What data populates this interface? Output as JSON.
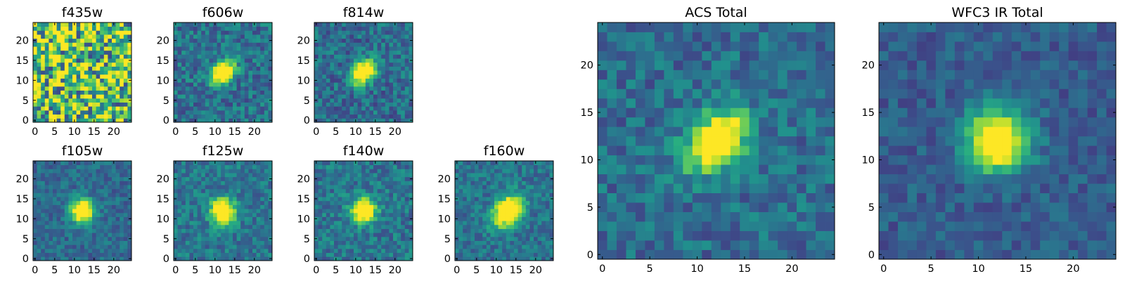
{
  "chart_data": [
    {
      "type": "heatmap",
      "title": "f435w",
      "xticks": [
        "0",
        "5",
        "10",
        "15",
        "20"
      ],
      "yticks": [
        "0",
        "5",
        "10",
        "15",
        "20"
      ],
      "xlim": [
        -0.5,
        24.5
      ],
      "ylim": [
        -0.5,
        24.5
      ],
      "grid": false,
      "colormap": "viridis",
      "source_blob": null,
      "noise": 1.0,
      "base": 0.72,
      "seed": 11
    },
    {
      "type": "heatmap",
      "title": "f606w",
      "xticks": [
        "0",
        "5",
        "10",
        "15",
        "20"
      ],
      "yticks": [
        "0",
        "5",
        "10",
        "15",
        "20"
      ],
      "xlim": [
        -0.5,
        24.5
      ],
      "ylim": [
        -0.5,
        24.5
      ],
      "grid": false,
      "colormap": "viridis",
      "source_blob": {
        "x": 12,
        "y": 12,
        "peak": 1.0,
        "sigma": 1.6,
        "elongation": "diagonal"
      },
      "noise": 0.35,
      "base": 0.38,
      "seed": 22
    },
    {
      "type": "heatmap",
      "title": "f814w",
      "xticks": [
        "0",
        "5",
        "10",
        "15",
        "20"
      ],
      "yticks": [
        "0",
        "5",
        "10",
        "15",
        "20"
      ],
      "xlim": [
        -0.5,
        24.5
      ],
      "ylim": [
        -0.5,
        24.5
      ],
      "grid": false,
      "colormap": "viridis",
      "source_blob": {
        "x": 12,
        "y": 12,
        "peak": 1.0,
        "sigma": 1.7,
        "elongation": "diagonal"
      },
      "noise": 0.35,
      "base": 0.36,
      "seed": 33
    },
    {
      "type": "heatmap",
      "title": "f105w",
      "xticks": [
        "0",
        "5",
        "10",
        "15",
        "20"
      ],
      "yticks": [
        "0",
        "5",
        "10",
        "15",
        "20"
      ],
      "xlim": [
        -0.5,
        24.5
      ],
      "ylim": [
        -0.5,
        24.5
      ],
      "grid": false,
      "colormap": "viridis",
      "source_blob": {
        "x": 12,
        "y": 12,
        "peak": 1.0,
        "sigma": 2.0,
        "elongation": "round"
      },
      "noise": 0.25,
      "base": 0.35,
      "seed": 44
    },
    {
      "type": "heatmap",
      "title": "f125w",
      "xticks": [
        "0",
        "5",
        "10",
        "15",
        "20"
      ],
      "yticks": [
        "0",
        "5",
        "10",
        "15",
        "20"
      ],
      "xlim": [
        -0.5,
        24.5
      ],
      "ylim": [
        -0.5,
        24.5
      ],
      "grid": false,
      "colormap": "viridis",
      "source_blob": {
        "x": 12,
        "y": 12,
        "peak": 1.0,
        "sigma": 2.1,
        "elongation": "round"
      },
      "noise": 0.3,
      "base": 0.4,
      "seed": 55
    },
    {
      "type": "heatmap",
      "title": "f140w",
      "xticks": [
        "0",
        "5",
        "10",
        "15",
        "20"
      ],
      "yticks": [
        "0",
        "5",
        "10",
        "15",
        "20"
      ],
      "xlim": [
        -0.5,
        24.5
      ],
      "ylim": [
        -0.5,
        24.5
      ],
      "grid": false,
      "colormap": "viridis",
      "source_blob": {
        "x": 12,
        "y": 12,
        "peak": 1.0,
        "sigma": 2.0,
        "elongation": "round"
      },
      "noise": 0.32,
      "base": 0.4,
      "seed": 66
    },
    {
      "type": "heatmap",
      "title": "f160w",
      "xticks": [
        "0",
        "5",
        "10",
        "15",
        "20"
      ],
      "yticks": [
        "0",
        "5",
        "10",
        "15",
        "20"
      ],
      "xlim": [
        -0.5,
        24.5
      ],
      "ylim": [
        -0.5,
        24.5
      ],
      "grid": false,
      "colormap": "viridis",
      "source_blob": {
        "x": 13,
        "y": 12,
        "peak": 1.0,
        "sigma": 2.1,
        "elongation": "diagonal"
      },
      "noise": 0.28,
      "base": 0.38,
      "seed": 77
    },
    {
      "type": "heatmap",
      "title": "ACS Total",
      "xticks": [
        "0",
        "5",
        "10",
        "15",
        "20"
      ],
      "yticks": [
        "0",
        "5",
        "10",
        "15",
        "20"
      ],
      "xlim": [
        -0.5,
        24.5
      ],
      "ylim": [
        -0.5,
        24.5
      ],
      "grid": false,
      "colormap": "viridis",
      "source_blob": {
        "x": 12,
        "y": 12,
        "peak": 1.0,
        "sigma": 1.7,
        "elongation": "diagonal"
      },
      "noise": 0.3,
      "base": 0.36,
      "seed": 88
    },
    {
      "type": "heatmap",
      "title": "WFC3 IR Total",
      "xticks": [
        "0",
        "5",
        "10",
        "15",
        "20"
      ],
      "yticks": [
        "0",
        "5",
        "10",
        "15",
        "20"
      ],
      "xlim": [
        -0.5,
        24.5
      ],
      "ylim": [
        -0.5,
        24.5
      ],
      "grid": false,
      "colormap": "viridis",
      "source_blob": {
        "x": 12,
        "y": 12,
        "peak": 1.0,
        "sigma": 2.2,
        "elongation": "round"
      },
      "noise": 0.22,
      "base": 0.3,
      "seed": 99
    }
  ]
}
